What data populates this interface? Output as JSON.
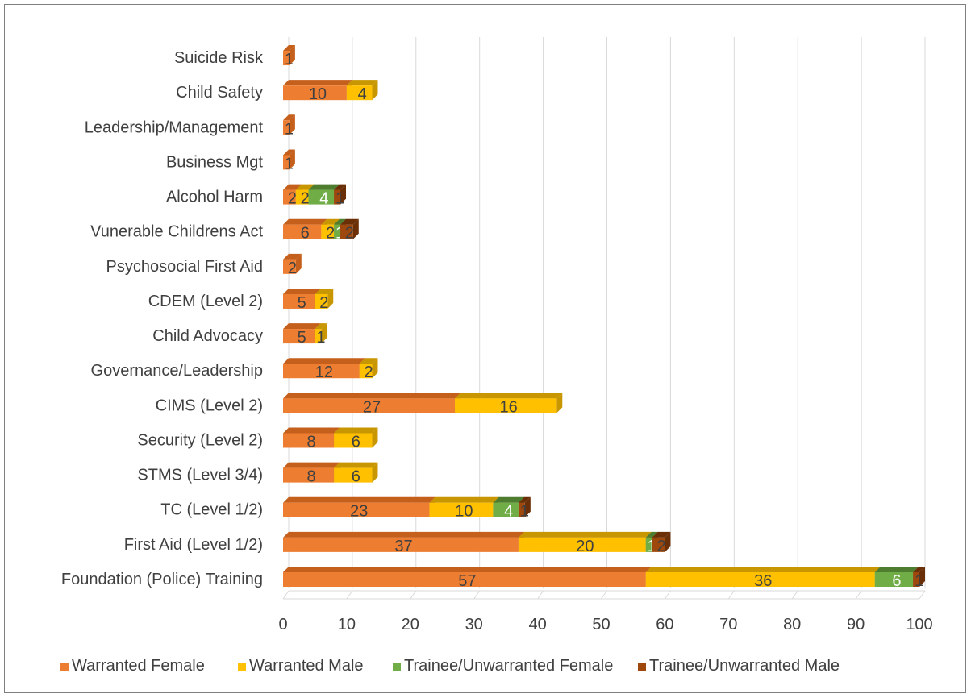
{
  "chart_data": {
    "type": "bar",
    "orientation": "horizontal",
    "stacked": true,
    "title": "",
    "xlabel": "",
    "ylabel": "",
    "xlim": [
      0,
      100
    ],
    "xticks": [
      0,
      10,
      20,
      30,
      40,
      50,
      60,
      70,
      80,
      90,
      100
    ],
    "grid": true,
    "legend_position": "bottom",
    "categories": [
      "Foundation (Police) Training",
      "First Aid (Level 1/2)",
      "TC (Level 1/2)",
      "STMS (Level 3/4)",
      "Security (Level 2)",
      "CIMS (Level 2)",
      "Governance/Leadership",
      "Child Advocacy",
      "CDEM (Level 2)",
      "Psychosocial First Aid",
      "Vunerable Childrens Act",
      "Alcohol Harm",
      "Business Mgt",
      "Leadership/Management",
      "Child Safety",
      "Suicide Risk"
    ],
    "series": [
      {
        "name": "Warranted Female",
        "color": "#ED7D31",
        "top_color": "#c55f1c",
        "values": [
          57,
          37,
          23,
          8,
          8,
          27,
          12,
          5,
          5,
          2,
          6,
          2,
          1,
          1,
          10,
          1
        ]
      },
      {
        "name": "Warranted Male",
        "color": "#FFC000",
        "top_color": "#c79600",
        "values": [
          36,
          20,
          10,
          6,
          6,
          16,
          2,
          1,
          2,
          0,
          2,
          2,
          0,
          0,
          4,
          0
        ]
      },
      {
        "name": "Trainee/Unwarranted Female",
        "color": "#70AD47",
        "top_color": "#4f7d30",
        "values": [
          6,
          1,
          4,
          0,
          0,
          0,
          0,
          0,
          0,
          0,
          1,
          4,
          0,
          0,
          0,
          0
        ]
      },
      {
        "name": "Trainee/Unwarranted Male",
        "color": "#9E480E",
        "top_color": "#6b2f08",
        "values": [
          1,
          2,
          1,
          0,
          0,
          0,
          0,
          0,
          0,
          0,
          2,
          1,
          0,
          0,
          0,
          0
        ]
      }
    ]
  }
}
